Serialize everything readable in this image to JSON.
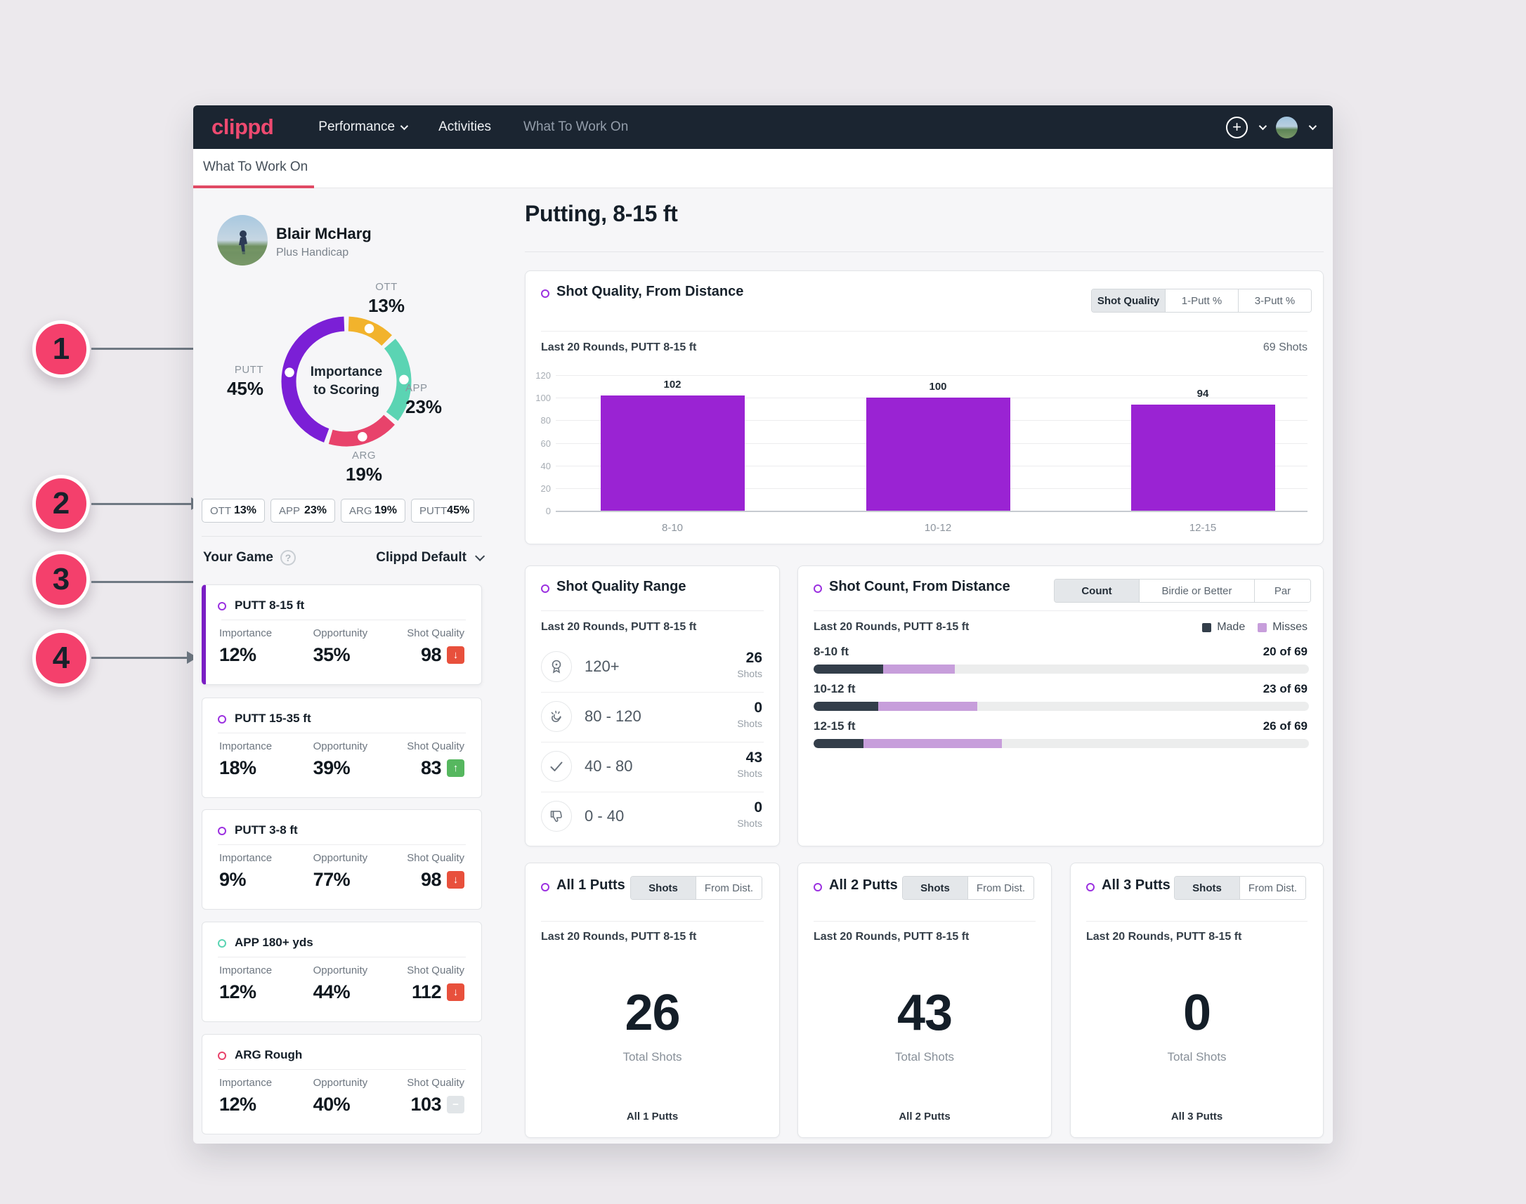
{
  "navbar": {
    "logo": "clippd",
    "items": [
      {
        "label": "Performance",
        "icon": "chevron-down-icon"
      },
      {
        "label": "Activities"
      },
      {
        "label": "What To Work On"
      }
    ],
    "right": {
      "add_icon": "plus-circle-icon",
      "add_glyph": "+",
      "avatar": "user-avatar"
    }
  },
  "tabbar": {
    "active_tab": "What To Work On"
  },
  "profile": {
    "name": "Blair McHarg",
    "subtitle": "Plus Handicap"
  },
  "importance_donut": {
    "type": "donut",
    "center_label_line1": "Importance",
    "center_label_line2": "to Scoring",
    "segments": [
      {
        "label": "OTT",
        "value": 13,
        "display": "13%",
        "color": "#f2b32c"
      },
      {
        "label": "APP",
        "value": 23,
        "display": "23%",
        "color": "#5bd4b3"
      },
      {
        "label": "ARG",
        "value": 19,
        "display": "19%",
        "color": "#e8436b"
      },
      {
        "label": "PUTT",
        "value": 45,
        "display": "45%",
        "color": "#7b1fd6"
      }
    ]
  },
  "category_chips": [
    {
      "label": "OTT",
      "value": "13%"
    },
    {
      "label": "APP",
      "value": "23%"
    },
    {
      "label": "ARG",
      "value": "19%"
    },
    {
      "label": "PUTT",
      "value": "45%"
    }
  ],
  "your_game": {
    "label": "Your Game",
    "help_icon": "help-icon",
    "help_glyph": "?",
    "preset": "Clippd Default"
  },
  "focus_labels": {
    "importance": "Importance",
    "opportunity": "Opportunity",
    "shot_quality": "Shot Quality"
  },
  "focus_cards": [
    {
      "title": "PUTT 8-15 ft",
      "accent": "#9b30e0",
      "importance": "12%",
      "opportunity": "35%",
      "shot_quality": "98",
      "trend": "down",
      "selected": true
    },
    {
      "title": "PUTT 15-35 ft",
      "accent": "#9b30e0",
      "importance": "18%",
      "opportunity": "39%",
      "shot_quality": "83",
      "trend": "up",
      "selected": false
    },
    {
      "title": "PUTT 3-8 ft",
      "accent": "#9b30e0",
      "importance": "9%",
      "opportunity": "77%",
      "shot_quality": "98",
      "trend": "down",
      "selected": false
    },
    {
      "title": "APP 180+ yds",
      "accent": "#5bd4b3",
      "importance": "12%",
      "opportunity": "44%",
      "shot_quality": "112",
      "trend": "down",
      "selected": false
    },
    {
      "title": "ARG Rough",
      "accent": "#e8436b",
      "importance": "12%",
      "opportunity": "40%",
      "shot_quality": "103",
      "trend": "neutral",
      "selected": false
    }
  ],
  "main": {
    "title": "Putting, 8-15 ft"
  },
  "shot_quality_card": {
    "title": "Shot Quality, From Distance",
    "toggles": [
      "Shot Quality",
      "1-Putt %",
      "3-Putt %"
    ],
    "active_toggle": "Shot Quality",
    "subtitle": "Last 20 Rounds, PUTT 8-15 ft",
    "shots_label": "69 Shots",
    "chart_data": {
      "type": "bar",
      "categories": [
        "8-10",
        "10-12",
        "12-15"
      ],
      "values": [
        102,
        100,
        94
      ],
      "ylim": [
        0,
        120
      ],
      "yticks": [
        0,
        20,
        40,
        60,
        80,
        100,
        120
      ],
      "bar_color": "#9a23d3",
      "grid": true
    }
  },
  "shot_quality_range_card": {
    "title": "Shot Quality Range",
    "subtitle": "Last 20 Rounds, PUTT 8-15 ft",
    "unit": "Shots",
    "rows": [
      {
        "icon": "medal-icon",
        "label": "120+",
        "value": "26"
      },
      {
        "icon": "clap-icon",
        "label": "80 - 120",
        "value": "0"
      },
      {
        "icon": "check-icon",
        "label": "40 - 80",
        "value": "43"
      },
      {
        "icon": "thumbs-down-icon",
        "label": "0 - 40",
        "value": "0"
      }
    ]
  },
  "shot_count_card": {
    "title": "Shot Count, From Distance",
    "toggles": [
      "Count",
      "Birdie or Better",
      "Par"
    ],
    "active_toggle": "Count",
    "subtitle": "Last 20 Rounds, PUTT 8-15 ft",
    "legend": [
      {
        "label": "Made",
        "color": "#333e4a"
      },
      {
        "label": "Misses",
        "color": "#c79edb"
      }
    ],
    "chart_data": {
      "type": "stacked-bar",
      "rows": [
        {
          "label": "8-10 ft",
          "value": "20 of 69",
          "made_pct": 14,
          "miss_pct": 14.5
        },
        {
          "label": "10-12 ft",
          "value": "23 of 69",
          "made_pct": 13,
          "miss_pct": 20
        },
        {
          "label": "12-15 ft",
          "value": "26 of 69",
          "made_pct": 10,
          "miss_pct": 28
        }
      ]
    }
  },
  "putt_cards": [
    {
      "title": "All 1 Putts",
      "toggles": [
        "Shots",
        "From Dist."
      ],
      "active_toggle": "Shots",
      "subtitle": "Last 20 Rounds, PUTT 8-15 ft",
      "total": "26",
      "total_label": "Total Shots",
      "footer": "All 1 Putts"
    },
    {
      "title": "All 2 Putts",
      "toggles": [
        "Shots",
        "From Dist."
      ],
      "active_toggle": "Shots",
      "subtitle": "Last 20 Rounds, PUTT 8-15 ft",
      "total": "43",
      "total_label": "Total Shots",
      "footer": "All 2 Putts"
    },
    {
      "title": "All 3 Putts",
      "toggles": [
        "Shots",
        "From Dist."
      ],
      "active_toggle": "Shots",
      "subtitle": "Last 20 Rounds, PUTT 8-15 ft",
      "total": "0",
      "total_label": "Total Shots",
      "footer": "All 3 Putts"
    }
  ],
  "annotations": {
    "numbers": [
      "1",
      "2",
      "3",
      "4"
    ]
  }
}
